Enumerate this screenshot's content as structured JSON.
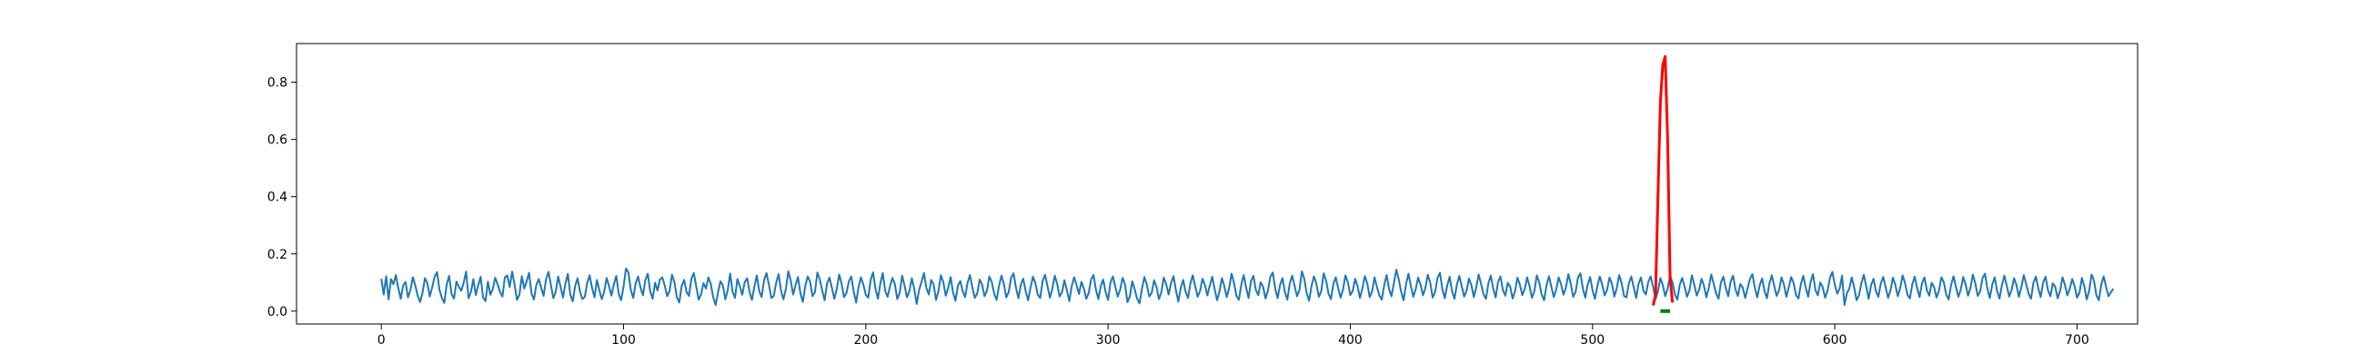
{
  "chart_data": {
    "type": "line",
    "title": "",
    "xlabel": "",
    "ylabel": "",
    "xlim": [
      -35,
      725
    ],
    "ylim": [
      -0.045,
      0.935
    ],
    "x_ticks": [
      0,
      100,
      200,
      300,
      400,
      500,
      600,
      700
    ],
    "y_ticks": [
      0.0,
      0.2,
      0.4,
      0.6,
      0.8
    ],
    "x_tick_labels": [
      "0",
      "100",
      "200",
      "300",
      "400",
      "500",
      "600",
      "700"
    ],
    "y_tick_labels": [
      "0.0",
      "0.2",
      "0.4",
      "0.6",
      "0.8"
    ],
    "grid": false,
    "series": [
      {
        "role": "signal",
        "color": "#1f77b4",
        "x_start": 0,
        "x_step": 1,
        "length": 691,
        "values": [
          0.113,
          0.058,
          0.122,
          0.041,
          0.112,
          0.094,
          0.126,
          0.081,
          0.043,
          0.089,
          0.102,
          0.048,
          0.073,
          0.118,
          0.091,
          0.054,
          0.032,
          0.064,
          0.115,
          0.097,
          0.051,
          0.083,
          0.12,
          0.136,
          0.075,
          0.046,
          0.029,
          0.094,
          0.123,
          0.06,
          0.044,
          0.103,
          0.085,
          0.071,
          0.099,
          0.138,
          0.045,
          0.067,
          0.112,
          0.056,
          0.09,
          0.12,
          0.048,
          0.035,
          0.103,
          0.057,
          0.077,
          0.117,
          0.094,
          0.067,
          0.051,
          0.118,
          0.125,
          0.084,
          0.138,
          0.093,
          0.039,
          0.057,
          0.122,
          0.079,
          0.104,
          0.134,
          0.062,
          0.04,
          0.092,
          0.112,
          0.082,
          0.053,
          0.111,
          0.137,
          0.092,
          0.045,
          0.068,
          0.121,
          0.085,
          0.047,
          0.097,
          0.13,
          0.059,
          0.034,
          0.087,
          0.115,
          0.069,
          0.042,
          0.05,
          0.099,
          0.125,
          0.081,
          0.048,
          0.109,
          0.073,
          0.042,
          0.067,
          0.116,
          0.087,
          0.054,
          0.094,
          0.123,
          0.06,
          0.038,
          0.086,
          0.149,
          0.135,
          0.073,
          0.046,
          0.098,
          0.121,
          0.082,
          0.055,
          0.108,
          0.131,
          0.069,
          0.043,
          0.099,
          0.072,
          0.11,
          0.118,
          0.089,
          0.052,
          0.071,
          0.127,
          0.101,
          0.048,
          0.03,
          0.088,
          0.109,
          0.067,
          0.053,
          0.113,
          0.133,
          0.086,
          0.04,
          0.059,
          0.098,
          0.079,
          0.118,
          0.095,
          0.049,
          0.021,
          0.066,
          0.104,
          0.09,
          0.041,
          0.073,
          0.131,
          0.068,
          0.046,
          0.112,
          0.087,
          0.057,
          0.101,
          0.115,
          0.068,
          0.039,
          0.086,
          0.125,
          0.07,
          0.049,
          0.108,
          0.133,
          0.092,
          0.046,
          0.053,
          0.099,
          0.129,
          0.072,
          0.041,
          0.077,
          0.139,
          0.107,
          0.058,
          0.091,
          0.119,
          0.063,
          0.032,
          0.087,
          0.121,
          0.103,
          0.052,
          0.066,
          0.135,
          0.111,
          0.072,
          0.038,
          0.097,
          0.117,
          0.081,
          0.043,
          0.077,
          0.128,
          0.096,
          0.049,
          0.063,
          0.104,
          0.121,
          0.069,
          0.03,
          0.084,
          0.118,
          0.092,
          0.057,
          0.047,
          0.109,
          0.135,
          0.078,
          0.043,
          0.096,
          0.133,
          0.071,
          0.05,
          0.087,
          0.116,
          0.094,
          0.042,
          0.064,
          0.124,
          0.089,
          0.048,
          0.071,
          0.115,
          0.077,
          0.025,
          0.074,
          0.102,
          0.133,
          0.081,
          0.058,
          0.109,
          0.093,
          0.039,
          0.07,
          0.125,
          0.101,
          0.054,
          0.081,
          0.119,
          0.066,
          0.036,
          0.088,
          0.105,
          0.07,
          0.049,
          0.099,
          0.126,
          0.082,
          0.046,
          0.062,
          0.11,
          0.093,
          0.052,
          0.071,
          0.121,
          0.102,
          0.061,
          0.039,
          0.089,
          0.124,
          0.094,
          0.048,
          0.067,
          0.117,
          0.132,
          0.081,
          0.045,
          0.092,
          0.113,
          0.069,
          0.038,
          0.083,
          0.12,
          0.098,
          0.057,
          0.046,
          0.105,
          0.127,
          0.087,
          0.047,
          0.078,
          0.124,
          0.095,
          0.051,
          0.066,
          0.108,
          0.073,
          0.035,
          0.087,
          0.118,
          0.091,
          0.06,
          0.102,
          0.08,
          0.043,
          0.063,
          0.111,
          0.126,
          0.075,
          0.042,
          0.088,
          0.11,
          0.066,
          0.039,
          0.1,
          0.121,
          0.085,
          0.051,
          0.075,
          0.116,
          0.093,
          0.031,
          0.052,
          0.104,
          0.076,
          0.044,
          0.027,
          0.078,
          0.119,
          0.092,
          0.051,
          0.063,
          0.108,
          0.085,
          0.042,
          0.066,
          0.117,
          0.094,
          0.058,
          0.098,
          0.122,
          0.074,
          0.033,
          0.081,
          0.109,
          0.068,
          0.046,
          0.097,
          0.125,
          0.086,
          0.05,
          0.071,
          0.113,
          0.091,
          0.055,
          0.089,
          0.12,
          0.077,
          0.038,
          0.069,
          0.115,
          0.087,
          0.049,
          0.082,
          0.131,
          0.098,
          0.053,
          0.039,
          0.092,
          0.126,
          0.082,
          0.046,
          0.104,
          0.123,
          0.074,
          0.056,
          0.101,
          0.085,
          0.044,
          0.072,
          0.12,
          0.135,
          0.079,
          0.045,
          0.091,
          0.115,
          0.066,
          0.04,
          0.096,
          0.124,
          0.089,
          0.052,
          0.073,
          0.139,
          0.113,
          0.062,
          0.037,
          0.088,
          0.121,
          0.095,
          0.05,
          0.069,
          0.132,
          0.107,
          0.061,
          0.042,
          0.094,
          0.118,
          0.08,
          0.047,
          0.076,
          0.125,
          0.101,
          0.056,
          0.07,
          0.113,
          0.087,
          0.046,
          0.08,
          0.122,
          0.097,
          0.049,
          0.069,
          0.118,
          0.084,
          0.055,
          0.04,
          0.091,
          0.126,
          0.078,
          0.052,
          0.098,
          0.145,
          0.111,
          0.067,
          0.038,
          0.094,
          0.131,
          0.088,
          0.05,
          0.077,
          0.117,
          0.093,
          0.055,
          0.081,
          0.127,
          0.099,
          0.047,
          0.066,
          0.116,
          0.134,
          0.077,
          0.045,
          0.089,
          0.12,
          0.07,
          0.043,
          0.092,
          0.123,
          0.087,
          0.051,
          0.071,
          0.114,
          0.09,
          0.049,
          0.084,
          0.128,
          0.095,
          0.059,
          0.043,
          0.097,
          0.124,
          0.078,
          0.048,
          0.102,
          0.121,
          0.073,
          0.054,
          0.099,
          0.086,
          0.044,
          0.069,
          0.117,
          0.093,
          0.056,
          0.077,
          0.118,
          0.087,
          0.046,
          0.07,
          0.125,
          0.1,
          0.058,
          0.038,
          0.09,
          0.122,
          0.085,
          0.049,
          0.075,
          0.118,
          0.094,
          0.057,
          0.082,
          0.129,
          0.096,
          0.05,
          0.067,
          0.118,
          0.132,
          0.079,
          0.047,
          0.093,
          0.119,
          0.072,
          0.043,
          0.088,
          0.121,
          0.092,
          0.055,
          0.074,
          0.117,
          0.095,
          0.051,
          0.08,
          0.126,
          0.098,
          0.053,
          0.048,
          0.097,
          0.121,
          0.083,
          0.046,
          0.096,
          0.117,
          0.071,
          0.058,
          0.102,
          0.121,
          0.084,
          0.042,
          0.07,
          0.115,
          0.091,
          0.052,
          0.079,
          0.124,
          0.101,
          0.058,
          0.04,
          0.091,
          0.116,
          0.086,
          0.05,
          0.072,
          0.125,
          0.092,
          0.054,
          0.075,
          0.113,
          0.088,
          0.048,
          0.082,
          0.128,
          0.096,
          0.062,
          0.043,
          0.1,
          0.12,
          0.081,
          0.052,
          0.103,
          0.124,
          0.076,
          0.053,
          0.095,
          0.082,
          0.046,
          0.079,
          0.113,
          0.129,
          0.081,
          0.048,
          0.09,
          0.114,
          0.07,
          0.045,
          0.096,
          0.125,
          0.088,
          0.053,
          0.073,
          0.118,
          0.093,
          0.05,
          0.083,
          0.119,
          0.098,
          0.056,
          0.044,
          0.094,
          0.123,
          0.082,
          0.05,
          0.101,
          0.129,
          0.074,
          0.055,
          0.1,
          0.084,
          0.047,
          0.071,
          0.116,
          0.137,
          0.092,
          0.061,
          0.079,
          0.124,
          0.021,
          0.063,
          0.079,
          0.118,
          0.083,
          0.038,
          0.056,
          0.099,
          0.127,
          0.085,
          0.043,
          0.091,
          0.113,
          0.069,
          0.05,
          0.097,
          0.119,
          0.083,
          0.046,
          0.073,
          0.117,
          0.092,
          0.052,
          0.081,
          0.125,
          0.098,
          0.057,
          0.044,
          0.094,
          0.121,
          0.08,
          0.049,
          0.097,
          0.118,
          0.073,
          0.054,
          0.099,
          0.084,
          0.047,
          0.072,
          0.118,
          0.101,
          0.058,
          0.041,
          0.091,
          0.122,
          0.085,
          0.05,
          0.075,
          0.119,
          0.094,
          0.054,
          0.081,
          0.128,
          0.097,
          0.053,
          0.069,
          0.116,
          0.131,
          0.078,
          0.046,
          0.092,
          0.118,
          0.07,
          0.044,
          0.091,
          0.124,
          0.088,
          0.051,
          0.074,
          0.115,
          0.091,
          0.05,
          0.083,
          0.126,
          0.095,
          0.061,
          0.043,
          0.099,
          0.121,
          0.08,
          0.049,
          0.1,
          0.12,
          0.073,
          0.052,
          0.097,
          0.085,
          0.045,
          0.07,
          0.118,
          0.092,
          0.055,
          0.078,
          0.112,
          0.087,
          0.047,
          0.064,
          0.116,
          0.087,
          0.041,
          0.071,
          0.128,
          0.106,
          0.055,
          0.038,
          0.093,
          0.121,
          0.084,
          0.052,
          0.066,
          0.078
        ]
      },
      {
        "role": "highlighted-peak",
        "color": "#ff0000",
        "x": [
          525,
          526,
          527,
          528,
          529,
          530,
          531,
          532,
          533
        ],
        "y": [
          0.02,
          0.055,
          0.4,
          0.73,
          0.86,
          0.89,
          0.6,
          0.12,
          0.03
        ]
      },
      {
        "role": "marker-segment",
        "color": "#008000",
        "x": [
          528,
          532
        ],
        "y": [
          0.0,
          0.0
        ]
      }
    ]
  }
}
